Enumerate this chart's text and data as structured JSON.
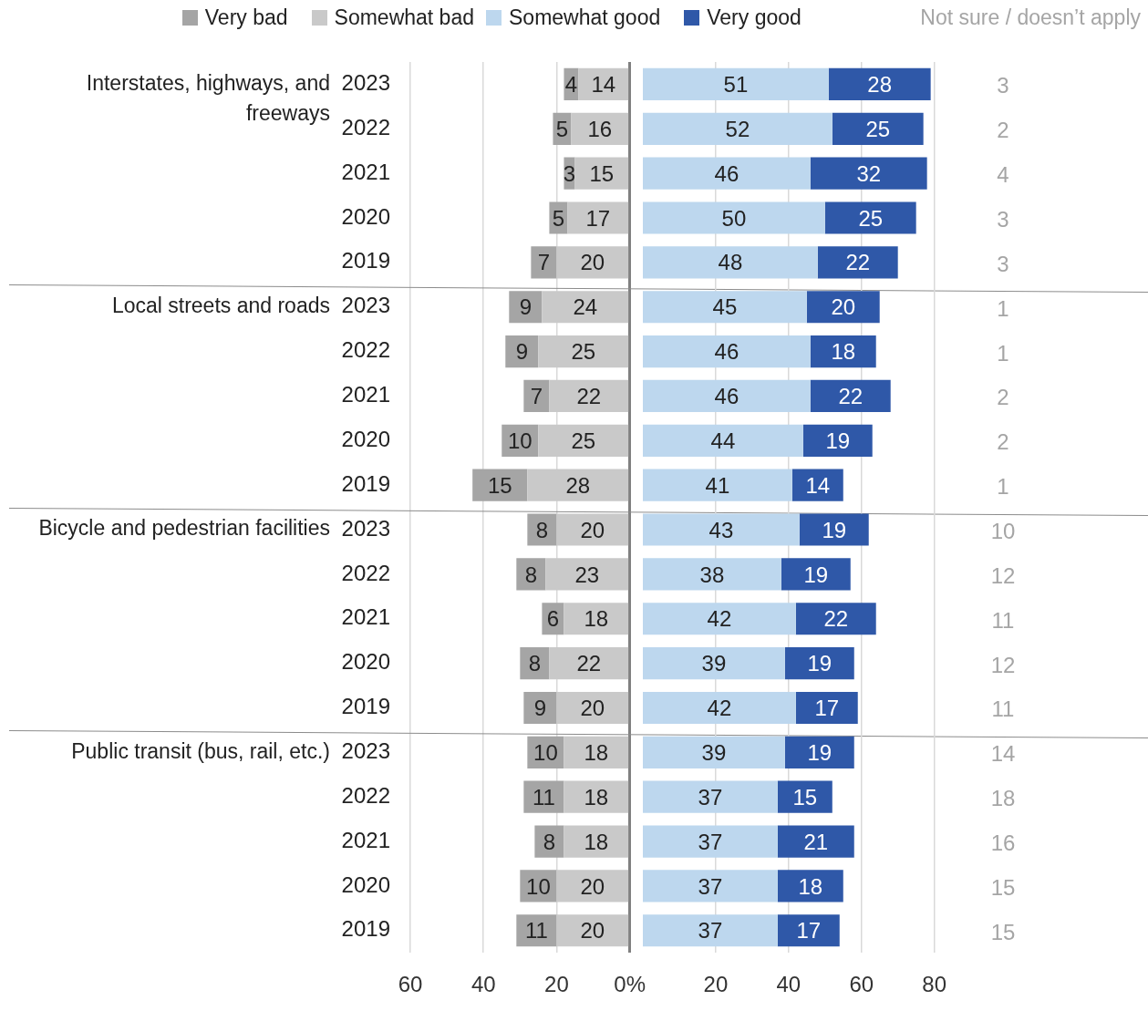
{
  "chart_data": [
    {
      "type": "bar",
      "orientation": "horizontal",
      "stacked": true,
      "data_labels": true,
      "grid": "x",
      "legend": "top",
      "categories": [
        "2023",
        "2022",
        "2021",
        "2020",
        "2019",
        "2023",
        "2022",
        "2021",
        "2020",
        "2019",
        "2023",
        "2022",
        "2021",
        "2020",
        "2019",
        "2023",
        "2022",
        "2021",
        "2020",
        "2019"
      ],
      "annotations": [
        "Interstates, highways, and freeways",
        "Local streets and roads",
        "Bicycle and pedestrian facilities",
        "Public transit (bus, rail, etc.)"
      ],
      "xlim": [
        60,
        0
      ],
      "xticks": [
        60,
        40,
        20,
        {
          "value": 0,
          "label": "0%"
        }
      ],
      "series": [
        {
          "name": "Somewhat bad",
          "color": "#c9c9c9",
          "values": [
            14,
            16,
            15,
            17,
            20,
            24,
            25,
            22,
            25,
            28,
            20,
            23,
            18,
            22,
            20,
            18,
            18,
            18,
            20,
            20
          ]
        },
        {
          "name": "Very bad",
          "color": "#a5a5a5",
          "values": [
            4,
            5,
            3,
            5,
            7,
            9,
            9,
            7,
            10,
            15,
            8,
            8,
            6,
            8,
            9,
            10,
            11,
            8,
            10,
            11
          ]
        }
      ]
    },
    {
      "type": "bar",
      "orientation": "horizontal",
      "stacked": true,
      "data_labels": true,
      "grid": "x",
      "legend": "top",
      "tick_labels": "x",
      "categories": [
        "2023",
        "2022",
        "2021",
        "2020",
        "2019",
        "2023",
        "2022",
        "2021",
        "2020",
        "2019",
        "2023",
        "2022",
        "2021",
        "2020",
        "2019",
        "2023",
        "2022",
        "2021",
        "2020",
        "2019"
      ],
      "xlim": [
        0,
        80
      ],
      "xticks": [
        20,
        40,
        60,
        80
      ],
      "series": [
        {
          "name": "Somewhat good",
          "color": "#bdd7ee",
          "values": [
            51,
            52,
            46,
            50,
            48,
            45,
            46,
            46,
            44,
            41,
            43,
            38,
            42,
            39,
            42,
            39,
            37,
            37,
            37,
            37
          ]
        },
        {
          "name": "Very good",
          "color": "#2f58a8",
          "values": [
            28,
            25,
            32,
            25,
            22,
            20,
            18,
            22,
            19,
            14,
            19,
            19,
            22,
            19,
            17,
            19,
            15,
            21,
            18,
            17
          ]
        }
      ]
    },
    {
      "type": "other",
      "title": "Not sure / doesn’t apply",
      "color": "#a5a5a5",
      "data_labels": true,
      "values": [
        3,
        2,
        4,
        3,
        3,
        1,
        1,
        2,
        2,
        1,
        10,
        12,
        11,
        12,
        11,
        14,
        18,
        16,
        15,
        15
      ]
    }
  ]
}
